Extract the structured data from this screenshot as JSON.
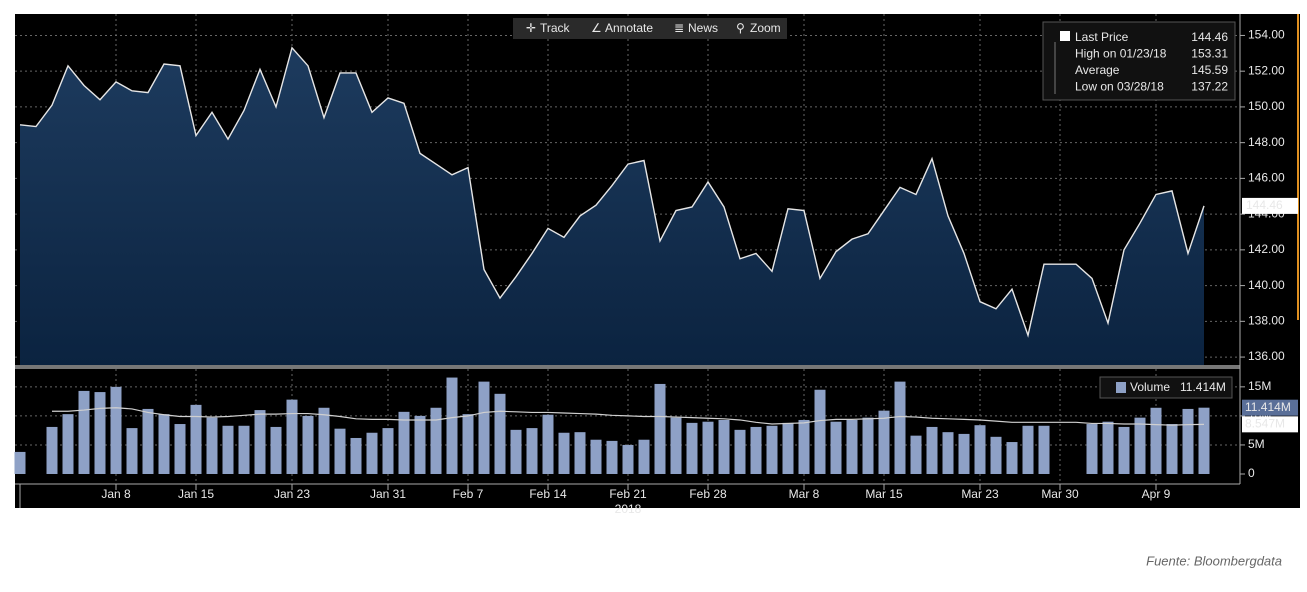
{
  "toolbar": [
    "Track",
    "Annotate",
    "News",
    "Zoom"
  ],
  "chart_data": [
    {
      "type": "area",
      "categories": [
        null,
        null,
        null,
        null,
        null,
        null,
        "Jan 8",
        null,
        null,
        null,
        null,
        "Jan 15",
        null,
        null,
        null,
        null,
        null,
        "Jan 23",
        null,
        null,
        null,
        null,
        null,
        "Jan 31",
        null,
        null,
        null,
        null,
        "Feb 7",
        null,
        null,
        null,
        null,
        "Feb 14",
        null,
        null,
        null,
        null,
        "Feb 21",
        null,
        null,
        null,
        null,
        "Feb 28",
        null,
        null,
        null,
        null,
        null,
        "Mar 8",
        null,
        null,
        null,
        null,
        "Mar 15",
        null,
        null,
        null,
        null,
        null,
        "Mar 23",
        null,
        null,
        null,
        null,
        "Mar 30",
        null,
        null,
        null,
        null,
        null,
        "Apr 9",
        null,
        null,
        null
      ],
      "year_label": "2018",
      "series": [
        {
          "name": "Last Price",
          "color": "#e6e6e6",
          "values": [
            149.0,
            148.9,
            150.1,
            152.3,
            151.2,
            150.4,
            151.4,
            150.9,
            150.8,
            152.4,
            152.3,
            148.4,
            149.7,
            148.2,
            149.8,
            152.1,
            150.0,
            153.31,
            152.3,
            149.4,
            151.9,
            151.9,
            149.7,
            150.5,
            150.2,
            147.4,
            146.8,
            146.2,
            146.6,
            140.9,
            139.3,
            140.5,
            141.8,
            143.2,
            142.7,
            143.9,
            144.5,
            145.6,
            146.8,
            147.0,
            142.5,
            144.2,
            144.4,
            145.8,
            144.4,
            141.5,
            141.8,
            140.8,
            144.3,
            144.2,
            140.4,
            141.9,
            142.6,
            142.9,
            144.2,
            145.5,
            145.1,
            147.1,
            143.9,
            141.8,
            139.1,
            138.7,
            139.8,
            137.22,
            141.2,
            141.2,
            141.2,
            140.4,
            137.9,
            142.0,
            143.5,
            145.1,
            145.3,
            141.8,
            144.46
          ]
        }
      ],
      "legend": [
        {
          "label": "Last Price",
          "value": 144.46
        },
        {
          "label": "High on 01/23/18",
          "value": 153.31
        },
        {
          "label": "Average",
          "value": 145.59
        },
        {
          "label": "Low on 03/28/18",
          "value": 137.22
        }
      ],
      "ylim": [
        135.5,
        155.2
      ],
      "yticks": [
        {
          "value": 136,
          "label": "136.00"
        },
        {
          "value": 138,
          "label": "138.00"
        },
        {
          "value": 140,
          "label": "140.00"
        },
        {
          "value": 142,
          "label": "142.00"
        },
        {
          "value": 144,
          "label": "144.00"
        },
        {
          "value": 146,
          "label": "146.00"
        },
        {
          "value": 148,
          "label": "148.00"
        },
        {
          "value": 150,
          "label": "150.00"
        },
        {
          "value": 152,
          "label": "152.00"
        },
        {
          "value": 154,
          "label": "154.00"
        }
      ],
      "grid": true
    },
    {
      "type": "bar",
      "series": [
        {
          "name": "Volume",
          "color": "#8ea1c6",
          "last_label": "11.414M",
          "values": [
            3.8,
            null,
            8.1,
            10.3,
            14.3,
            14.1,
            15.0,
            7.9,
            11.2,
            10.3,
            8.6,
            11.9,
            9.7,
            8.3,
            8.3,
            11.0,
            8.1,
            12.8,
            10.0,
            11.4,
            7.8,
            6.2,
            7.1,
            7.9,
            10.7,
            10.0,
            11.4,
            16.6,
            10.3,
            15.9,
            13.8,
            7.6,
            7.9,
            10.2,
            7.1,
            7.2,
            5.9,
            5.7,
            5.0,
            5.9,
            15.5,
            9.7,
            8.8,
            9.0,
            9.3,
            7.6,
            8.1,
            8.3,
            8.8,
            9.3,
            14.5,
            9.0,
            9.3,
            9.7,
            10.9,
            15.9,
            6.6,
            8.1,
            7.2,
            6.9,
            8.4,
            6.4,
            5.5,
            8.3,
            8.3,
            null,
            null,
            8.6,
            9.0,
            8.1,
            9.7,
            11.4,
            8.6,
            11.2,
            11.414
          ]
        },
        {
          "type": "line",
          "color": "#d0d0d0",
          "last_label": "8.547M",
          "values": [
            null,
            null,
            10.8,
            10.8,
            11.0,
            11.3,
            11.4,
            11.2,
            10.6,
            10.2,
            9.9,
            9.9,
            9.8,
            9.9,
            10.1,
            10.3,
            10.3,
            10.4,
            10.4,
            10.2,
            9.9,
            9.5,
            9.4,
            9.4,
            9.3,
            9.3,
            9.3,
            9.7,
            10.0,
            10.6,
            10.8,
            10.7,
            10.6,
            10.6,
            10.5,
            10.4,
            10.3,
            10.1,
            10.0,
            9.9,
            9.9,
            9.8,
            9.7,
            9.6,
            9.5,
            9.3,
            8.9,
            8.6,
            8.7,
            8.8,
            9.2,
            9.4,
            9.4,
            9.5,
            9.6,
            9.9,
            9.8,
            9.6,
            9.5,
            9.4,
            9.3,
            9.1,
            8.9,
            8.9,
            8.9,
            8.9,
            8.9,
            8.7,
            8.7,
            8.6,
            8.6,
            8.5,
            8.4,
            8.5,
            8.547
          ]
        }
      ],
      "ylim": [
        0,
        17.9
      ],
      "yticks": [
        0,
        {
          "value": 5,
          "label": "5M"
        },
        {
          "value": 10,
          "label": "10M"
        },
        {
          "value": 15,
          "label": "15M"
        }
      ],
      "grid": true
    }
  ],
  "source": "Fuente: Bloombergdata"
}
